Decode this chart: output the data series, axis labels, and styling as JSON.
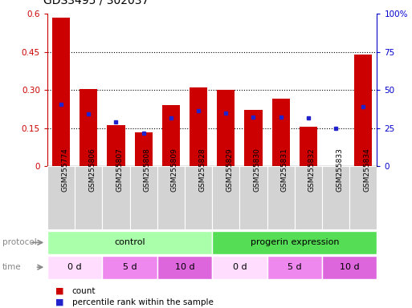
{
  "title": "GDS3495 / 302037",
  "samples": [
    "GSM255774",
    "GSM255806",
    "GSM255807",
    "GSM255808",
    "GSM255809",
    "GSM255828",
    "GSM255829",
    "GSM255830",
    "GSM255831",
    "GSM255832",
    "GSM255833",
    "GSM255834"
  ],
  "red_values": [
    0.585,
    0.305,
    0.163,
    0.135,
    0.24,
    0.31,
    0.3,
    0.222,
    0.265,
    0.155,
    0.002,
    0.44
  ],
  "blue_values_left": [
    0.245,
    0.205,
    0.175,
    0.13,
    0.19,
    0.22,
    0.21,
    0.195,
    0.195,
    0.19,
    0.15,
    0.235
  ],
  "ylim_left": [
    0,
    0.6
  ],
  "ylim_right": [
    0,
    100
  ],
  "yticks_left": [
    0,
    0.15,
    0.3,
    0.45,
    0.6
  ],
  "ytick_labels_left": [
    "0",
    "0.15",
    "0.30",
    "0.45",
    "0.6"
  ],
  "yticks_right": [
    0,
    25,
    50,
    75,
    100
  ],
  "ytick_labels_right": [
    "0",
    "25",
    "50",
    "75",
    "100%"
  ],
  "bar_color": "#cc0000",
  "dot_color": "#2222cc",
  "bg_color": "#ffffff",
  "protocol_groups": [
    {
      "label": "control",
      "start": 0,
      "end": 6,
      "color": "#aaffaa"
    },
    {
      "label": "progerin expression",
      "start": 6,
      "end": 12,
      "color": "#55dd55"
    }
  ],
  "time_groups": [
    {
      "label": "0 d",
      "start": 0,
      "end": 2,
      "color": "#ffddff"
    },
    {
      "label": "5 d",
      "start": 2,
      "end": 4,
      "color": "#ee88ee"
    },
    {
      "label": "10 d",
      "start": 4,
      "end": 6,
      "color": "#dd66dd"
    },
    {
      "label": "0 d",
      "start": 6,
      "end": 8,
      "color": "#ffddff"
    },
    {
      "label": "5 d",
      "start": 8,
      "end": 10,
      "color": "#ee88ee"
    },
    {
      "label": "10 d",
      "start": 10,
      "end": 12,
      "color": "#dd66dd"
    }
  ],
  "legend_count_label": "count",
  "legend_percentile_label": "percentile rank within the sample",
  "axis_fontsize": 7.5,
  "title_fontsize": 10,
  "sample_fontsize": 6.5
}
